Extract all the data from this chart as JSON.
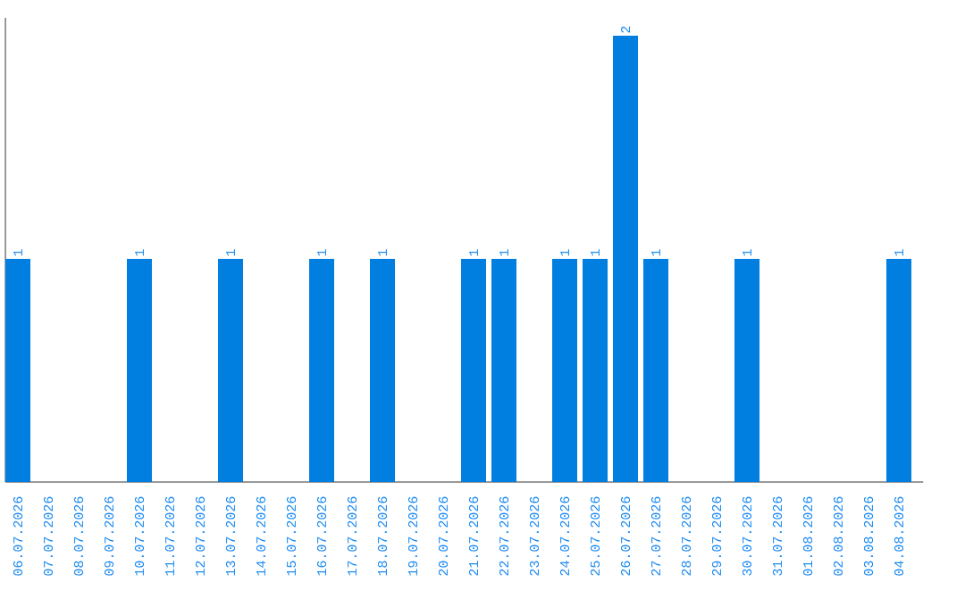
{
  "chart_data": {
    "type": "bar",
    "categories": [
      "06.07.2026",
      "07.07.2026",
      "08.07.2026",
      "09.07.2026",
      "10.07.2026",
      "11.07.2026",
      "12.07.2026",
      "13.07.2026",
      "14.07.2026",
      "15.07.2026",
      "16.07.2026",
      "17.07.2026",
      "18.07.2026",
      "19.07.2026",
      "20.07.2026",
      "21.07.2026",
      "22.07.2026",
      "23.07.2026",
      "24.07.2026",
      "25.07.2026",
      "26.07.2026",
      "27.07.2026",
      "28.07.2026",
      "29.07.2026",
      "30.07.2026",
      "31.07.2026",
      "01.08.2026",
      "02.08.2026",
      "03.08.2026",
      "04.08.2026"
    ],
    "values": [
      1,
      0,
      0,
      0,
      1,
      0,
      0,
      1,
      0,
      0,
      1,
      0,
      1,
      0,
      0,
      1,
      1,
      0,
      1,
      1,
      2,
      1,
      0,
      0,
      1,
      0,
      0,
      0,
      0,
      1
    ],
    "value_labels": [
      "1",
      null,
      null,
      null,
      "1",
      null,
      null,
      "1",
      null,
      null,
      "1",
      null,
      "1",
      null,
      null,
      "1",
      "1",
      null,
      "1",
      "1",
      "2",
      "1",
      null,
      null,
      "1",
      null,
      null,
      null,
      null,
      "1"
    ],
    "color": "#007fe0",
    "tick_labels": "x"
  }
}
